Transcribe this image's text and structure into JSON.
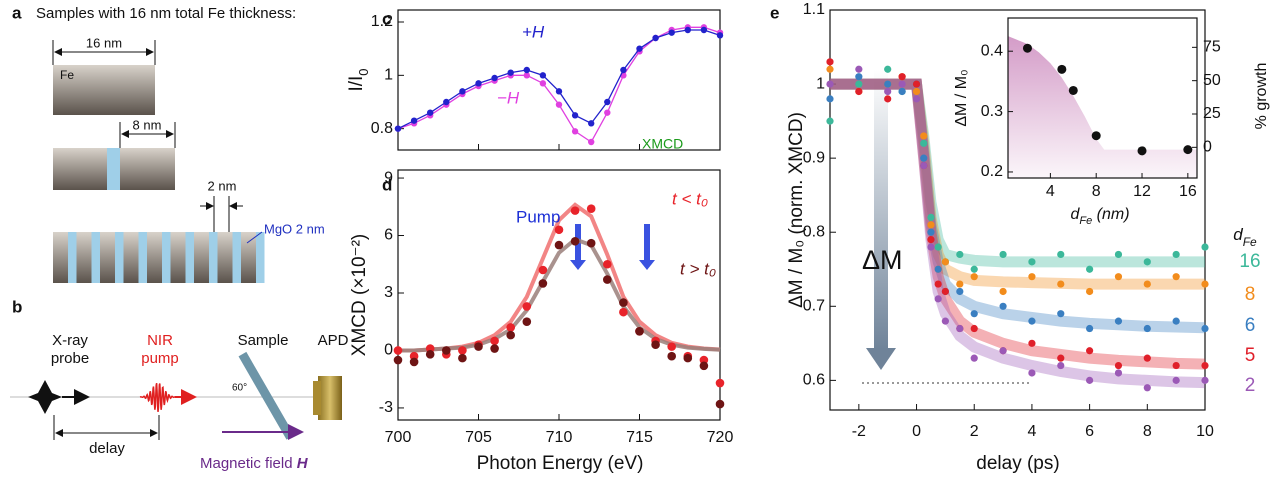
{
  "panels": {
    "a": {
      "label": "a",
      "title": "Samples with 16 nm total Fe thickness:",
      "material": "Fe",
      "widths": [
        "16 nm",
        "8 nm",
        "2 nm"
      ],
      "spacer": "MgO  2 nm"
    },
    "b": {
      "label": "b",
      "probe": [
        "X-ray",
        "probe"
      ],
      "pump": [
        "NIR",
        "pump"
      ],
      "sample": "Sample",
      "detector": "APD",
      "delay": "delay",
      "angle": "60°",
      "field": "Magnetic field ",
      "field_symbol": "H"
    }
  },
  "chart_data": [
    {
      "type": "line",
      "panel_label": "c",
      "x": [
        700,
        701,
        702,
        703,
        704,
        705,
        706,
        707,
        708,
        709,
        710,
        711,
        712,
        713,
        714,
        715,
        716,
        717,
        718,
        719,
        720
      ],
      "xlim": [
        700,
        720
      ],
      "xticks": [
        700,
        705,
        710,
        715,
        720
      ],
      "ylim": [
        0.72,
        1.245
      ],
      "yticks": [
        0.8,
        1,
        1.2
      ],
      "ylabel": {
        "main": "I/I",
        "sub": "0"
      },
      "series": [
        {
          "name": "+H",
          "color": "#2222cc",
          "values": [
            0.8,
            0.83,
            0.86,
            0.9,
            0.94,
            0.97,
            0.99,
            1.01,
            1.02,
            1.0,
            0.94,
            0.85,
            0.82,
            0.9,
            1.02,
            1.1,
            1.14,
            1.16,
            1.17,
            1.17,
            1.15
          ]
        },
        {
          "name": "−H",
          "color": "#e040e0",
          "values": [
            0.8,
            0.82,
            0.85,
            0.89,
            0.93,
            0.96,
            0.98,
            1.0,
            1.0,
            0.97,
            0.89,
            0.79,
            0.75,
            0.86,
            1.0,
            1.09,
            1.14,
            1.17,
            1.18,
            1.18,
            1.16
          ]
        }
      ],
      "annotations": [
        {
          "text": "XMCD",
          "color": "#1a9a1a"
        }
      ]
    },
    {
      "type": "scatter",
      "panel_label": "d",
      "x": [
        700,
        701,
        702,
        703,
        704,
        705,
        706,
        707,
        708,
        709,
        710,
        711,
        712,
        713,
        714,
        715,
        716,
        717,
        718,
        719,
        720
      ],
      "xlim": [
        700,
        720
      ],
      "xticks": [
        700,
        705,
        710,
        715,
        720
      ],
      "xlabel": "Photon Energy (eV)",
      "ylim": [
        -3.63,
        9.42
      ],
      "yticks": [
        -3,
        0,
        3,
        6,
        9
      ],
      "ylabel": "XMCD (×10⁻²)",
      "series": [
        {
          "name": "t < t₀",
          "color": "#e8232a",
          "fit_color": "#f07070",
          "values": [
            0.0,
            -0.3,
            0.1,
            -0.2,
            0.0,
            0.3,
            0.5,
            1.2,
            2.3,
            4.2,
            6.3,
            7.3,
            7.4,
            4.5,
            2.0,
            1.0,
            0.5,
            0.2,
            -0.3,
            -0.5,
            -1.7
          ],
          "fit": [
            0,
            0,
            0.05,
            0.1,
            0.2,
            0.4,
            0.8,
            1.5,
            2.8,
            4.8,
            6.8,
            7.6,
            7.0,
            5.0,
            2.8,
            1.5,
            0.8,
            0.4,
            0.2,
            0.1,
            0.05
          ]
        },
        {
          "name": "t > t₀",
          "color": "#6e1414",
          "fit_color": "#9a7f7a",
          "values": [
            -0.5,
            -0.6,
            -0.2,
            0.0,
            -0.4,
            0.2,
            0.1,
            0.8,
            1.5,
            3.5,
            5.5,
            5.7,
            5.6,
            3.7,
            2.5,
            1.0,
            0.3,
            -0.3,
            -0.4,
            -0.8,
            -2.8
          ],
          "fit": [
            0,
            0,
            0.05,
            0.1,
            0.15,
            0.3,
            0.6,
            1.1,
            2.1,
            3.6,
            5.1,
            5.8,
            5.5,
            4.0,
            2.3,
            1.2,
            0.6,
            0.3,
            0.15,
            0.08,
            0.04
          ]
        }
      ],
      "annotations": [
        {
          "text": "Pump",
          "color": "#1c2fd6"
        }
      ]
    },
    {
      "type": "scatter",
      "panel_label": "e",
      "x": [
        -3,
        -2,
        -1,
        -0.5,
        0,
        0.25,
        0.5,
        0.75,
        1,
        1.5,
        2,
        3,
        4,
        5,
        6,
        7,
        8,
        9,
        10
      ],
      "xlim": [
        -3,
        10
      ],
      "xticks": [
        -2,
        0,
        2,
        4,
        6,
        8,
        10
      ],
      "xlabel": "delay (ps)",
      "ylim": [
        0.56,
        1.1
      ],
      "yticks": [
        0.6,
        0.7,
        0.8,
        0.9,
        1,
        1.1
      ],
      "ylabel": "ΔM / M₀  (norm. XMCD)",
      "legend_title": {
        "main": "d",
        "sub": "Fe"
      },
      "series": [
        {
          "name": "16",
          "color": "#3cb89a",
          "values": [
            0.95,
            1.0,
            1.02,
            0.99,
            1.0,
            0.92,
            0.82,
            0.78,
            0.76,
            0.77,
            0.75,
            0.77,
            0.76,
            0.77,
            0.75,
            0.77,
            0.76,
            0.77,
            0.78
          ],
          "fit": [
            1,
            1,
            1,
            1,
            1,
            0.93,
            0.84,
            0.79,
            0.77,
            0.765,
            0.762,
            0.76,
            0.76,
            0.76,
            0.76,
            0.76,
            0.76,
            0.76,
            0.76
          ]
        },
        {
          "name": "8",
          "color": "#f28c1c",
          "values": [
            1.02,
            0.99,
            1.0,
            1.01,
            0.99,
            0.93,
            0.81,
            0.75,
            0.76,
            0.73,
            0.74,
            0.72,
            0.74,
            0.73,
            0.72,
            0.74,
            0.73,
            0.74,
            0.73
          ],
          "fit": [
            1,
            1,
            1,
            1,
            1,
            0.92,
            0.82,
            0.77,
            0.75,
            0.74,
            0.735,
            0.733,
            0.732,
            0.731,
            0.73,
            0.73,
            0.73,
            0.73,
            0.73
          ]
        },
        {
          "name": "6",
          "color": "#3a7fc1",
          "values": [
            0.98,
            1.01,
            1.0,
            0.99,
            1.0,
            0.9,
            0.8,
            0.75,
            0.72,
            0.72,
            0.69,
            0.7,
            0.68,
            0.69,
            0.67,
            0.68,
            0.67,
            0.68,
            0.67
          ],
          "fit": [
            1,
            1,
            1,
            1,
            1,
            0.91,
            0.81,
            0.76,
            0.73,
            0.71,
            0.7,
            0.69,
            0.685,
            0.68,
            0.677,
            0.675,
            0.673,
            0.672,
            0.671
          ]
        },
        {
          "name": "5",
          "color": "#e0202a",
          "values": [
            1.03,
            0.99,
            0.98,
            1.01,
            1.0,
            0.89,
            0.79,
            0.73,
            0.72,
            0.67,
            0.67,
            0.64,
            0.65,
            0.63,
            0.64,
            0.62,
            0.63,
            0.62,
            0.62
          ],
          "fit": [
            1,
            1,
            1,
            1,
            1,
            0.9,
            0.8,
            0.74,
            0.71,
            0.68,
            0.665,
            0.65,
            0.64,
            0.635,
            0.63,
            0.627,
            0.625,
            0.623,
            0.622
          ]
        },
        {
          "name": "2",
          "color": "#9b59b6",
          "values": [
            1.0,
            1.02,
            0.99,
            1.0,
            0.98,
            0.89,
            0.78,
            0.71,
            0.68,
            0.67,
            0.63,
            0.64,
            0.61,
            0.62,
            0.6,
            0.61,
            0.59,
            0.6,
            0.6
          ],
          "fit": [
            1,
            1,
            1,
            1,
            1,
            0.9,
            0.79,
            0.72,
            0.69,
            0.66,
            0.645,
            0.63,
            0.62,
            0.612,
            0.606,
            0.602,
            0.6,
            0.598,
            0.597
          ]
        }
      ],
      "annotations": [
        {
          "text": "ΔM"
        }
      ]
    },
    {
      "type": "scatter",
      "x": [
        2,
        5,
        6,
        8,
        12,
        16
      ],
      "values": [
        0.405,
        0.37,
        0.335,
        0.26,
        0.235,
        0.237
      ],
      "color": "#111111",
      "xlim": [
        0.3,
        16.8
      ],
      "xticks": [
        4,
        8,
        12,
        16
      ],
      "xlabel": {
        "main": "d",
        "sub": "Fe",
        "unit": " (nm)"
      },
      "ylim": [
        0.19,
        0.455
      ],
      "yticks": [
        0.2,
        0.3,
        0.4
      ],
      "ylabel": "ΔM / M₀",
      "y2lim": [
        -23,
        97
      ],
      "y2ticks": [
        0,
        25,
        50,
        75
      ],
      "y2label": "% growth",
      "fit": {
        "x": [
          0.3,
          2,
          3,
          4,
          5,
          6,
          7,
          8,
          8.7,
          16.8
        ],
        "values": [
          0.425,
          0.412,
          0.398,
          0.38,
          0.356,
          0.326,
          0.292,
          0.255,
          0.237,
          0.237
        ]
      },
      "fit_color": "#b04a9a"
    }
  ]
}
